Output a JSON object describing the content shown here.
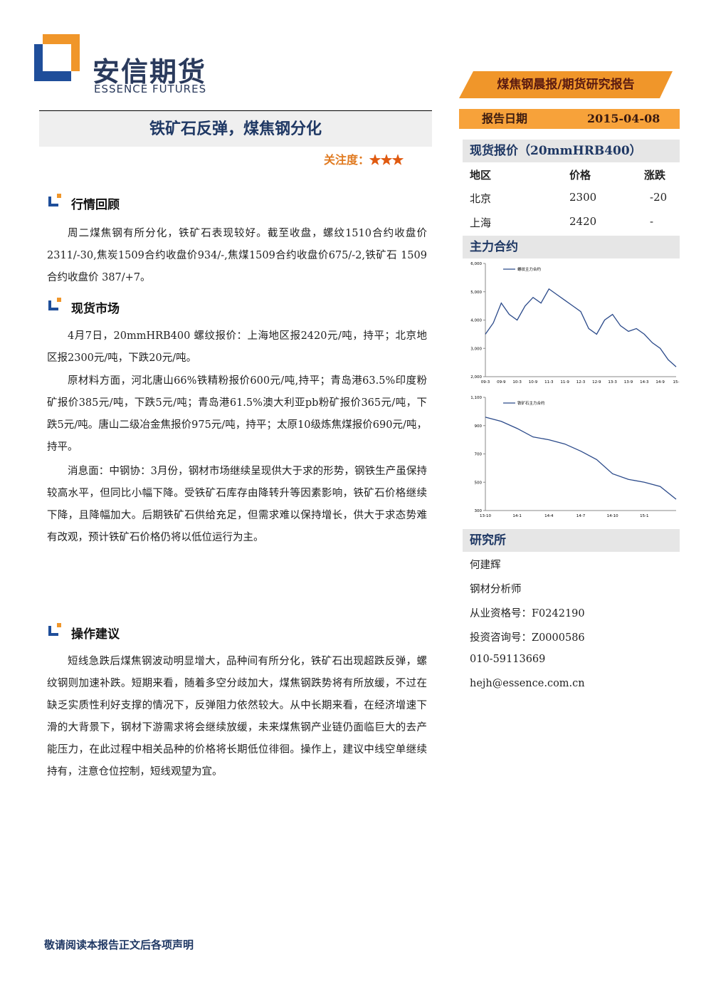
{
  "header": {
    "logo_cn": "安信期货",
    "logo_en": "ESSENCE FUTURES",
    "report_type": "煤焦钢晨报/期货研究报告",
    "date_label": "报告日期",
    "date": "2015-04-08"
  },
  "title": "铁矿石反弹，煤焦钢分化",
  "attention": {
    "label": "关注度：",
    "stars": "★★★"
  },
  "sections": [
    {
      "heading": "行情回顾",
      "paragraphs": [
        "周二煤焦钢有所分化，铁矿石表现较好。截至收盘，螺纹1510合约收盘价2311/-30,焦炭1509合约收盘价934/-,焦煤1509合约收盘价675/-2,铁矿石 1509 合约收盘价 387/+7。"
      ]
    },
    {
      "heading": "现货市场",
      "paragraphs": [
        "4月7日，20mmHRB400 螺纹报价：上海地区报2420元/吨，持平；北京地区报2300元/吨，下跌20元/吨。",
        "原材料方面，河北唐山66%铁精粉报价600元/吨,持平；青岛港63.5%印度粉矿报价385元/吨，下跌5元/吨；青岛港61.5%澳大利亚pb粉矿报价365元/吨，下跌5元/吨。唐山二级冶金焦报价975元/吨，持平；太原10级炼焦煤报价690元/吨，持平。",
        "消息面：中钢协：3月份，钢材市场继续呈现供大于求的形势，钢铁生产虽保持较高水平，但同比小幅下降。受铁矿石库存由降转升等因素影响，铁矿石价格继续下降，且降幅加大。后期铁矿石供给充足，但需求难以保持增长，供大于求态势难有改观，预计铁矿石价格仍将以低位运行为主。"
      ]
    },
    {
      "heading": "操作建议",
      "paragraphs": [
        "短线急跌后煤焦钢波动明显增大，品种间有所分化，铁矿石出现超跌反弹，螺纹钢则加速补跌。短期来看，随着多空分歧加大，煤焦钢跌势将有所放缓，不过在缺乏实质性利好支撑的情况下，反弹阻力依然较大。从中长期来看，在经济增速下滑的大背景下，钢材下游需求将会继续放缓，未来煤焦钢产业链仍面临巨大的去产能压力，在此过程中相关品种的价格将长期低位徘徊。操作上，建议中线空单继续持有，注意仓位控制，短线观望为宜。"
      ]
    }
  ],
  "spot": {
    "heading": "现货报价（20mmHRB400）",
    "columns": [
      "地区",
      "价格",
      "涨跌"
    ],
    "rows": [
      [
        "北京",
        "2300",
        "-20"
      ],
      [
        "上海",
        "2420",
        "-"
      ]
    ]
  },
  "contracts_heading": "主力合约",
  "chart_data": [
    {
      "type": "line",
      "categories": [
        "09-3",
        null,
        "09-9",
        null,
        "10-3",
        null,
        "10-9",
        null,
        "11-3",
        null,
        "11-9",
        null,
        "12-3",
        null,
        "12-9",
        null,
        "13-3",
        null,
        "13-9",
        null,
        "14-3",
        null,
        "14-9",
        null,
        "15-"
      ],
      "series": [
        {
          "name": "螺纹主力合约",
          "color": "#2b4a8a",
          "values": [
            3500,
            3900,
            4600,
            4200,
            4000,
            4500,
            4800,
            4600,
            5100,
            4900,
            4700,
            4500,
            4300,
            3700,
            3500,
            4000,
            4200,
            3800,
            3600,
            3700,
            3500,
            3200,
            3000,
            2600,
            2350
          ]
        }
      ],
      "ylim": [
        2000,
        6000
      ],
      "yticks": [
        {
          "value": 2000,
          "label": "2,000"
        },
        {
          "value": 3000,
          "label": "3,000"
        },
        {
          "value": 4000,
          "label": "4,000"
        },
        {
          "value": 5000,
          "label": "5,000"
        },
        {
          "value": 6000,
          "label": "6,000"
        }
      ]
    },
    {
      "type": "line",
      "categories": [
        "13-10",
        null,
        "14-1",
        null,
        "14-4",
        null,
        "14-7",
        null,
        "14-10",
        null,
        "15-1",
        null,
        null
      ],
      "series": [
        {
          "name": "铁矿石主力合约",
          "color": "#2b4a8a",
          "values": [
            960,
            930,
            880,
            820,
            800,
            770,
            720,
            660,
            560,
            520,
            500,
            470,
            380
          ]
        }
      ],
      "ylim": [
        300,
        1100
      ],
      "yticks": [
        300,
        500,
        700,
        900,
        {
          "value": 1100,
          "label": "1,100"
        }
      ]
    }
  ],
  "research": {
    "heading": "研究所",
    "lines": [
      "何建辉",
      "钢材分析师",
      "从业资格号：F0242190",
      "投资咨询号：Z0000586",
      "010-59113669",
      "hejh@essence.com.cn"
    ]
  },
  "footer": "敬请阅读本报告正文后各项声明"
}
